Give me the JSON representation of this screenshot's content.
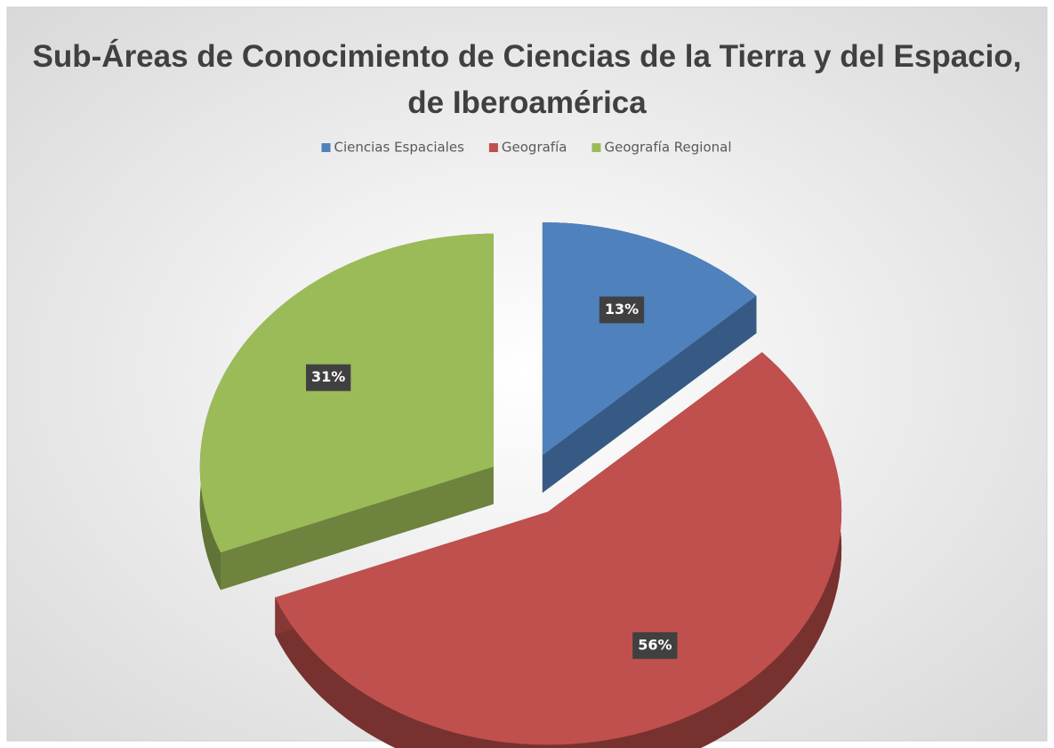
{
  "chart_data": {
    "type": "pie",
    "title": "Sub-Áreas de Conocimiento de Ciencias de la Tierra y del Espacio, de Iberoamérica",
    "categories": [
      "Ciencias Espaciales",
      "Geografía",
      "Geografía Regional"
    ],
    "values": [
      13,
      56,
      31
    ],
    "value_labels": [
      "13%",
      "56%",
      "31%"
    ],
    "colors": [
      "#4f81bd",
      "#c0504d",
      "#9bbb59"
    ],
    "legend": "top"
  }
}
